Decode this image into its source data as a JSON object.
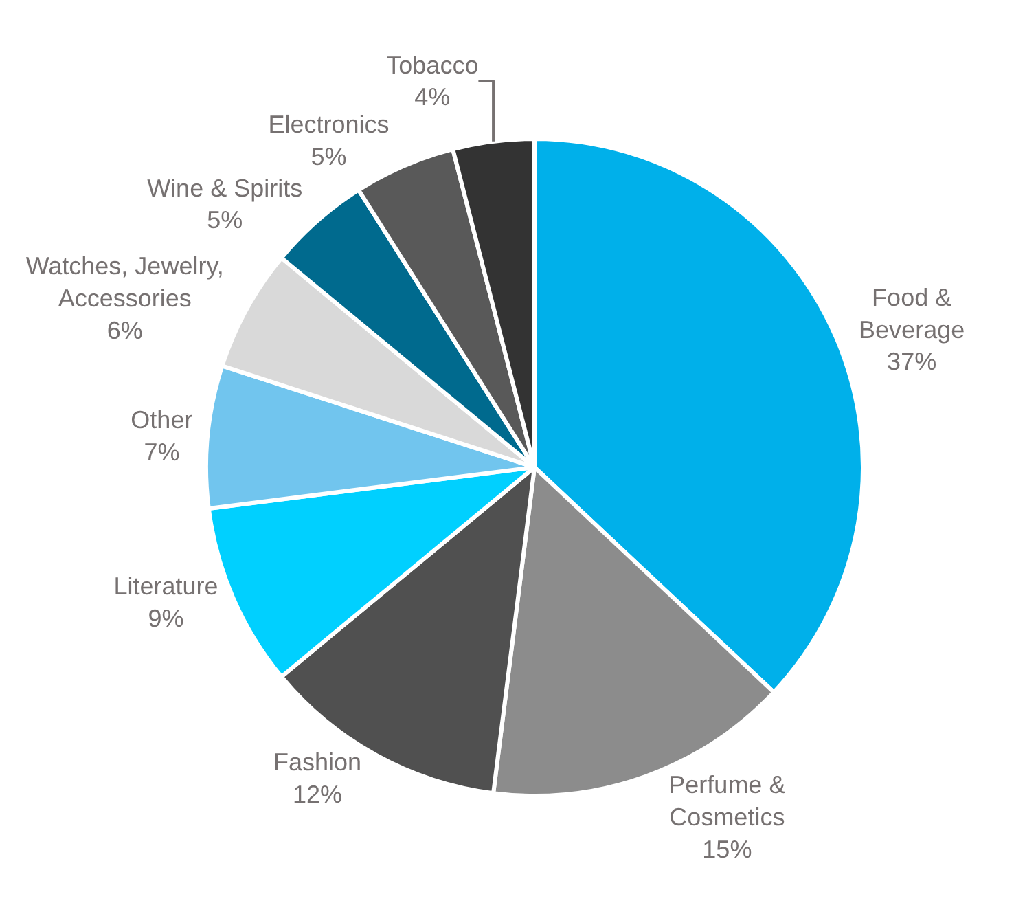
{
  "chart_data": {
    "type": "pie",
    "categories": [
      "Food &\nBeverage",
      "Perfume &\nCosmetics",
      "Fashion",
      "Literature",
      "Other",
      "Watches, Jewelry,\nAccessories",
      "Wine & Spirits",
      "Electronics",
      "Tobacco"
    ],
    "values": [
      37,
      15,
      12,
      9,
      7,
      6,
      5,
      5,
      4
    ],
    "value_labels": [
      "37%",
      "15%",
      "12%",
      "9%",
      "7%",
      "6%",
      "5%",
      "5%",
      "4%"
    ],
    "colors": [
      "#00b0ea",
      "#8c8c8c",
      "#505050",
      "#00d0ff",
      "#71c5ee",
      "#d9d9d9",
      "#006a8e",
      "#595959",
      "#333333"
    ],
    "legend": false
  }
}
